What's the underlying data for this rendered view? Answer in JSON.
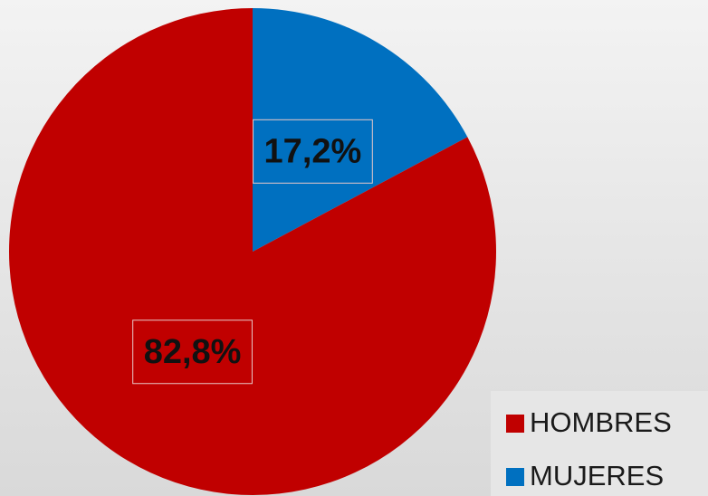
{
  "chart_data": {
    "type": "pie",
    "categories": [
      "HOMBRES",
      "MUJERES"
    ],
    "values": [
      82.8,
      17.2
    ],
    "value_labels": [
      "82,8%",
      "17,2%"
    ],
    "colors": [
      "#c00000",
      "#0070c0"
    ],
    "legend": "bottom-right"
  }
}
